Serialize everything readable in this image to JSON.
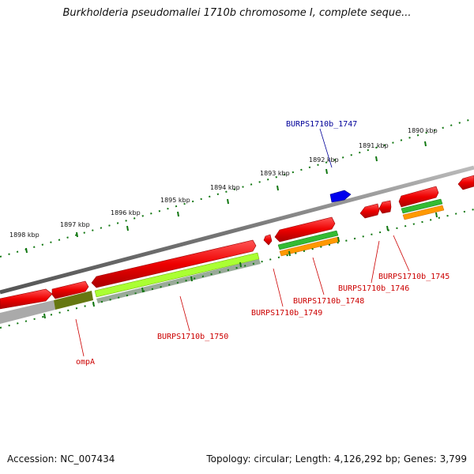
{
  "title": "Burkholderia pseudomallei 1710b chromosome I, complete seque...",
  "footer": {
    "accession": "Accession: NC_007434",
    "topology": "Topology: circular; Length: 4,126,292 bp; Genes: 3,799"
  },
  "scale_labels": [
    "1898 kbp",
    "1897 kbp",
    "1896 kbp",
    "1895 kbp",
    "1894 kbp",
    "1893 kbp",
    "1892 kbp",
    "1891 kbp",
    "1890 kbp"
  ],
  "gene_labels": [
    "BURPS1710b_1747",
    "BURPS1710b_1745",
    "BURPS1710b_1746",
    "BURPS1710b_1748",
    "BURPS1710b_1749",
    "BURPS1710b_1750",
    "ompA"
  ],
  "colors": {
    "gene_red": "#ff0000",
    "gene_blue": "#0000ee",
    "rna_green": "#33bb33",
    "rna_orange": "#ff9900",
    "rna_lime": "#aaff33",
    "olive": "#667711",
    "backbone": "#777777",
    "tick_green": "#117711",
    "label_red": "#cc0000",
    "label_blue": "#000099"
  }
}
